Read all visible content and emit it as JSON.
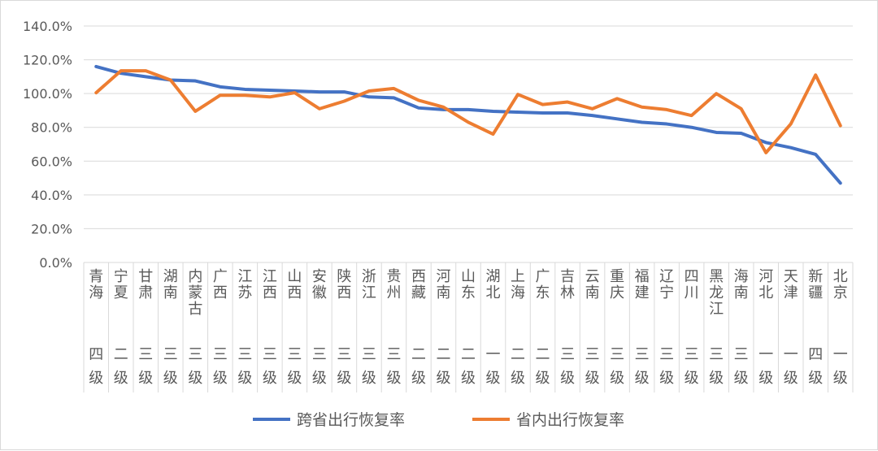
{
  "chart_data": {
    "type": "line",
    "title": "",
    "xlabel": "",
    "ylabel": "",
    "ylim": [
      0,
      140
    ],
    "yticks": [
      "0.0%",
      "20.0%",
      "40.0%",
      "60.0%",
      "80.0%",
      "100.0%",
      "120.0%",
      "140.0%"
    ],
    "grid": true,
    "legend_position": "bottom",
    "categories": [
      "青海",
      "宁夏",
      "甘肃",
      "湖南",
      "内蒙古",
      "广西",
      "江苏",
      "江西",
      "山西",
      "安徽",
      "陕西",
      "浙江",
      "贵州",
      "西藏",
      "河南",
      "山东",
      "湖北",
      "上海",
      "广东",
      "吉林",
      "云南",
      "重庆",
      "福建",
      "辽宁",
      "四川",
      "黑龙江",
      "海南",
      "河北",
      "天津",
      "新疆",
      "北京"
    ],
    "tiers": [
      "四级",
      "二级",
      "三级",
      "三级",
      "三级",
      "三级",
      "三级",
      "三级",
      "三级",
      "三级",
      "三级",
      "三级",
      "三级",
      "二级",
      "二级",
      "二级",
      "一级",
      "二级",
      "二级",
      "三级",
      "三级",
      "三级",
      "三级",
      "三级",
      "三级",
      "三级",
      "三级",
      "一级",
      "一级",
      "四级",
      "一级"
    ],
    "series": [
      {
        "name": "跨省出行恢复率",
        "color": "#4472C4",
        "values": [
          116,
          112,
          110,
          108,
          107.5,
          104,
          102.5,
          102,
          101.5,
          101,
          101,
          98,
          97.5,
          91.5,
          90.5,
          90.5,
          89.5,
          89,
          88.5,
          88.5,
          87,
          85,
          83,
          82,
          80,
          77,
          76.5,
          71,
          68,
          64,
          47
        ]
      },
      {
        "name": "省内出行恢复率",
        "color": "#ED7D31",
        "values": [
          100.5,
          113.5,
          113.5,
          108,
          89.5,
          99,
          99,
          98,
          100.5,
          91,
          95.5,
          101.5,
          103,
          96,
          92,
          83,
          76,
          99.5,
          93.5,
          95,
          91,
          97,
          92,
          90.5,
          87,
          100,
          91,
          65,
          82,
          111,
          81
        ]
      }
    ]
  }
}
